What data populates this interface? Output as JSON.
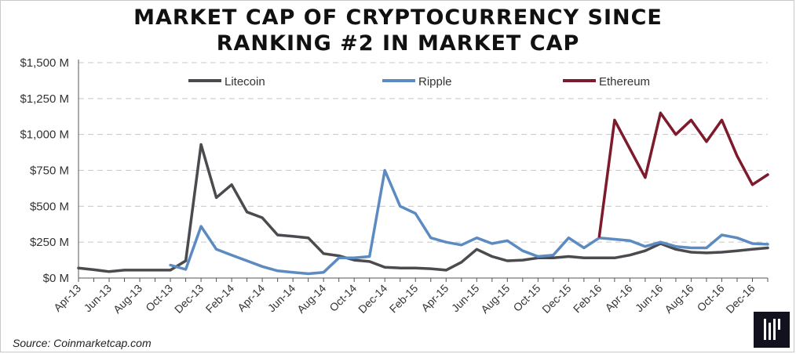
{
  "title_line1": "MARKET CAP OF CRYPTOCURRENCY SINCE",
  "title_line2": "RANKING #2 IN MARKET CAP",
  "source": "Source: Coinmarketcap.com",
  "logo": "logo-icon",
  "chart_data": {
    "type": "line",
    "title": "MARKET CAP OF CRYPTOCURRENCY SINCE RANKING #2 IN MARKET CAP",
    "xlabel": "",
    "ylabel": "",
    "x": [
      "Apr-13",
      "May-13",
      "Jun-13",
      "Jul-13",
      "Aug-13",
      "Sep-13",
      "Oct-13",
      "Nov-13",
      "Dec-13",
      "Jan-14",
      "Feb-14",
      "Mar-14",
      "Apr-14",
      "May-14",
      "Jun-14",
      "Jul-14",
      "Aug-14",
      "Sep-14",
      "Oct-14",
      "Nov-14",
      "Dec-14",
      "Jan-15",
      "Feb-15",
      "Mar-15",
      "Apr-15",
      "May-15",
      "Jun-15",
      "Jul-15",
      "Aug-15",
      "Sep-15",
      "Oct-15",
      "Nov-15",
      "Dec-15",
      "Jan-16",
      "Feb-16",
      "Mar-16",
      "Apr-16",
      "May-16",
      "Jun-16",
      "Jul-16",
      "Aug-16",
      "Sep-16",
      "Oct-16",
      "Nov-16",
      "Dec-16",
      "Jan-17"
    ],
    "x_tick_labels": [
      "Apr-13",
      "Jun-13",
      "Aug-13",
      "Oct-13",
      "Dec-13",
      "Feb-14",
      "Apr-14",
      "Jun-14",
      "Aug-14",
      "Oct-14",
      "Dec-14",
      "Feb-15",
      "Apr-15",
      "Jun-15",
      "Aug-15",
      "Oct-15",
      "Dec-15",
      "Feb-16",
      "Apr-16",
      "Jun-16",
      "Aug-16",
      "Oct-16",
      "Dec-16"
    ],
    "y_tick_labels": [
      "$0 M",
      "$250 M",
      "$500 M",
      "$750 M",
      "$1,000 M",
      "$1,250 M",
      "$1,500 M"
    ],
    "ylim": [
      0,
      1500
    ],
    "grid": true,
    "legend_position": "top",
    "series": [
      {
        "name": "Litecoin",
        "color": "#4a4a4f",
        "values": [
          70,
          58,
          45,
          55,
          55,
          55,
          55,
          120,
          930,
          560,
          650,
          460,
          420,
          300,
          290,
          280,
          170,
          155,
          125,
          115,
          75,
          70,
          70,
          65,
          55,
          110,
          200,
          150,
          120,
          125,
          140,
          140,
          150,
          140,
          140,
          140,
          160,
          190,
          240,
          200,
          180,
          175,
          180,
          190,
          200,
          210
        ]
      },
      {
        "name": "Ripple",
        "color": "#5b8bc0",
        "values": [
          null,
          null,
          null,
          null,
          null,
          null,
          90,
          60,
          360,
          200,
          160,
          120,
          80,
          50,
          40,
          30,
          40,
          140,
          140,
          150,
          750,
          500,
          450,
          280,
          250,
          230,
          280,
          240,
          260,
          190,
          150,
          160,
          280,
          210,
          280,
          270,
          260,
          220,
          250,
          220,
          210,
          210,
          300,
          280,
          240,
          235
        ]
      },
      {
        "name": "Ethereum",
        "color": "#7d1a2b",
        "values": [
          null,
          null,
          null,
          null,
          null,
          null,
          null,
          null,
          null,
          null,
          null,
          null,
          null,
          null,
          null,
          null,
          null,
          null,
          null,
          null,
          null,
          null,
          null,
          null,
          null,
          null,
          null,
          null,
          null,
          null,
          null,
          null,
          null,
          null,
          290,
          1100,
          900,
          700,
          1150,
          1000,
          1100,
          950,
          1100,
          850,
          650,
          720
        ]
      }
    ]
  }
}
